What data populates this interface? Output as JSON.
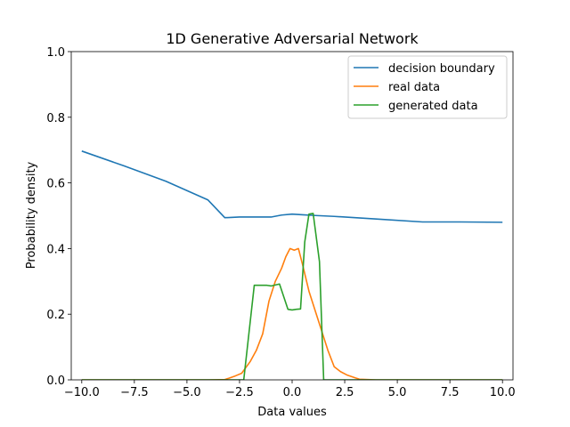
{
  "chart_data": {
    "type": "line",
    "title": "1D Generative Adversarial Network",
    "xlabel": "Data values",
    "ylabel": "Probability density",
    "xlim": [
      -10.5,
      10.5
    ],
    "ylim": [
      0,
      1
    ],
    "xticks": [
      -10,
      -7.5,
      -5,
      -2.5,
      0,
      2.5,
      5,
      7.5,
      10
    ],
    "xtick_labels": [
      "−10.0",
      "−7.5",
      "−5.0",
      "−2.5",
      "0.0",
      "2.5",
      "5.0",
      "7.5",
      "10.0"
    ],
    "yticks": [
      0,
      0.2,
      0.4,
      0.6,
      0.8,
      1.0
    ],
    "ytick_labels": [
      "0.0",
      "0.2",
      "0.4",
      "0.6",
      "0.8",
      "1.0"
    ],
    "legend_position": "top-right",
    "series": [
      {
        "name": "decision boundary",
        "color": "#1f77b4",
        "x": [
          -10,
          -8,
          -6,
          -4,
          -3.2,
          -2.5,
          -1.5,
          -1,
          -0.5,
          0,
          0.5,
          1,
          2,
          4,
          6.2,
          8,
          10
        ],
        "y": [
          0.697,
          0.652,
          0.605,
          0.548,
          0.494,
          0.496,
          0.496,
          0.496,
          0.502,
          0.505,
          0.503,
          0.501,
          0.498,
          0.49,
          0.481,
          0.481,
          0.48
        ]
      },
      {
        "name": "real data",
        "color": "#ff7f0e",
        "x": [
          -10,
          -4,
          -3.2,
          -3,
          -2.7,
          -2.4,
          -2,
          -1.7,
          -1.4,
          -1.1,
          -0.8,
          -0.5,
          -0.3,
          -0.1,
          0.1,
          0.3,
          0.5,
          0.8,
          1.1,
          1.4,
          1.7,
          2.0,
          2.3,
          2.6,
          3.0,
          3.2,
          4,
          10
        ],
        "y": [
          0,
          0,
          0.001,
          0.005,
          0.012,
          0.02,
          0.055,
          0.09,
          0.14,
          0.24,
          0.3,
          0.34,
          0.375,
          0.4,
          0.395,
          0.4,
          0.35,
          0.27,
          0.21,
          0.15,
          0.09,
          0.04,
          0.025,
          0.015,
          0.006,
          0.002,
          0,
          0
        ]
      },
      {
        "name": "generated data",
        "color": "#2ca02c",
        "x": [
          -10,
          -2.3,
          -1.8,
          -1.2,
          -1.0,
          -0.6,
          -0.2,
          0.0,
          0.2,
          0.4,
          0.6,
          0.8,
          1.0,
          1.3,
          1.5,
          10
        ],
        "y": [
          0,
          0,
          0.288,
          0.288,
          0.286,
          0.292,
          0.215,
          0.213,
          0.215,
          0.216,
          0.42,
          0.505,
          0.507,
          0.36,
          0,
          0
        ]
      }
    ]
  }
}
